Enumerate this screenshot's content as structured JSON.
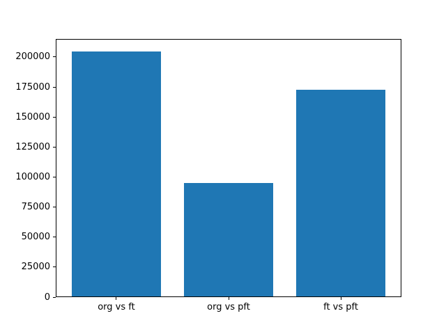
{
  "chart_data": {
    "type": "bar",
    "categories": [
      "org vs ft",
      "org vs pft",
      "ft vs pft"
    ],
    "values": [
      204600,
      95200,
      172600
    ],
    "title": "",
    "xlabel": "",
    "ylabel": "",
    "ylim": [
      0,
      215000
    ],
    "xlim": [
      -0.54,
      2.54
    ],
    "bar_width": 0.8,
    "yticks": [
      0,
      25000,
      50000,
      75000,
      100000,
      125000,
      150000,
      175000,
      200000
    ],
    "bar_color": "#1f77b4",
    "axis_color": "#000000",
    "background_color": "#ffffff",
    "grid": false,
    "legend": false
  }
}
